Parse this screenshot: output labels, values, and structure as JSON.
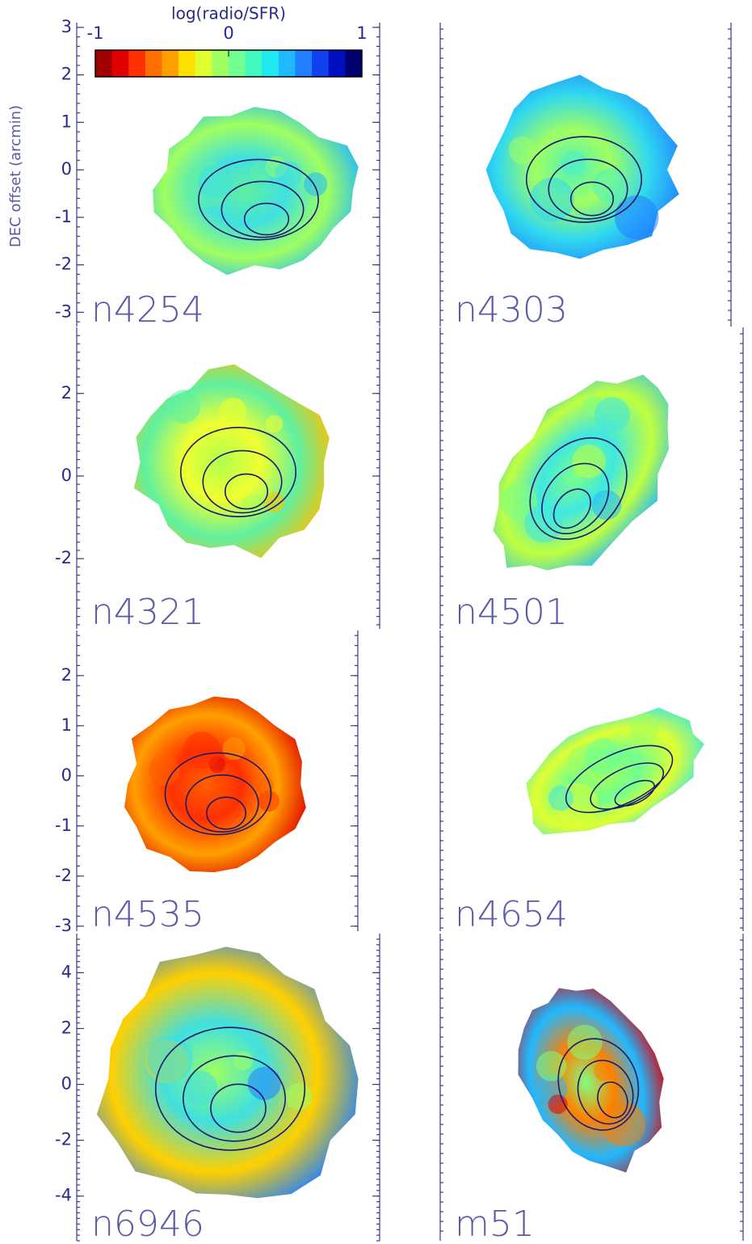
{
  "colorbar": {
    "title": "log(radio/SFR)",
    "lim": [
      -1,
      1
    ],
    "ticks": [
      -1,
      0,
      1
    ],
    "colors": [
      "#a00000",
      "#e00000",
      "#ff3000",
      "#ff7000",
      "#ffa000",
      "#ffe000",
      "#e0ff30",
      "#a0ff60",
      "#70ff90",
      "#40f8c0",
      "#20e8f0",
      "#20b8ff",
      "#2080ff",
      "#1040f0",
      "#0010c0",
      "#000070"
    ]
  },
  "ylabel": "DEC offset (arcmin)",
  "panels": [
    {
      "name": "n4254",
      "ylim": [
        -3.3,
        3.1
      ],
      "yticks": [
        -3,
        -2,
        -1,
        0,
        1,
        2,
        3
      ]
    },
    {
      "name": "n4303"
    },
    {
      "name": "n4321",
      "ylim": [
        -3.7,
        3.6
      ],
      "yticks": [
        -2,
        0,
        2
      ]
    },
    {
      "name": "n4501"
    },
    {
      "name": "n4535",
      "ylim": [
        -3.1,
        2.9
      ],
      "yticks": [
        -3,
        -2,
        -1,
        0,
        1,
        2
      ]
    },
    {
      "name": "n4654"
    },
    {
      "name": "n6946",
      "ylim": [
        -5.6,
        5.4
      ],
      "yticks": [
        -4,
        -2,
        0,
        2,
        4
      ]
    },
    {
      "name": "m51"
    }
  ]
}
